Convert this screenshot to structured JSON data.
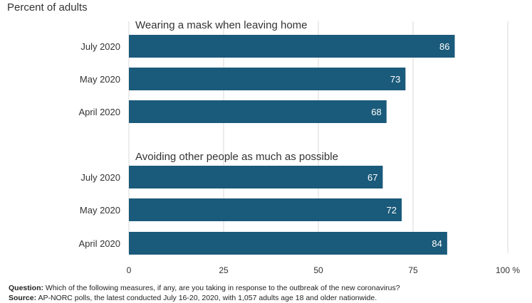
{
  "chart_data": {
    "type": "bar",
    "orientation": "horizontal",
    "subtitle": "Percent of adults",
    "groups": [
      {
        "title": "Wearing a mask when leaving home",
        "categories": [
          "July 2020",
          "May 2020",
          "April 2020"
        ],
        "values": [
          86,
          73,
          68
        ]
      },
      {
        "title": "Avoiding other people as much as possible",
        "categories": [
          "July 2020",
          "May 2020",
          "April 2020"
        ],
        "values": [
          67,
          72,
          84
        ]
      }
    ],
    "xticks": [
      "0",
      "25",
      "50",
      "75",
      "100 %"
    ],
    "xlim": [
      0,
      100
    ],
    "grid": true,
    "bar_color": "#1a5a7a"
  },
  "footer": {
    "question_label": "Question:",
    "question_text": "Which of the following measures, if any, are you taking in response to the outbreak of the new coronavirus?",
    "source_label": "Source:",
    "source_text": "AP-NORC polls, the latest conducted July 16-20, 2020, with 1,057 adults age 18 and older nationwide."
  }
}
